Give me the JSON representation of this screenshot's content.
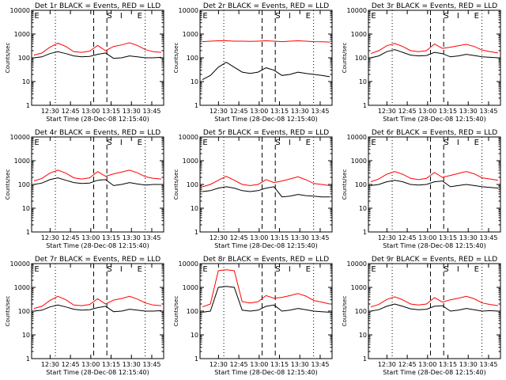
{
  "chart_data": [
    {
      "type": "line",
      "title": "Det 1r BLACK = Events, RED = LLD",
      "ylabel": "Counts/sec",
      "xlabel": "Start Time (28-Dec-08 12:15:40)",
      "xticks": [
        "12:30",
        "12:45",
        "13:00",
        "13:15",
        "13:30",
        "13:45"
      ],
      "yscale": "log",
      "ylim": [
        1,
        10000
      ],
      "yticks": [
        "1",
        "10",
        "100",
        "1000",
        "10000"
      ],
      "markers": [
        "E",
        "S",
        "I",
        "E"
      ],
      "series": [
        {
          "color": "#000000",
          "values": [
            100,
            110,
            150,
            180,
            150,
            120,
            110,
            115,
            140,
            160,
            95,
            100,
            120,
            110,
            100,
            100,
            105
          ]
        },
        {
          "color": "#ff0000",
          "values": [
            130,
            160,
            280,
            410,
            300,
            180,
            170,
            190,
            330,
            200,
            300,
            350,
            430,
            330,
            220,
            180,
            170
          ]
        }
      ]
    },
    {
      "type": "line",
      "title": "Det 2r BLACK = Events, RED = LLD",
      "ylabel": "Counts/sec",
      "xlabel": "Start Time (28-Dec-08 12:15:40)",
      "xticks": [
        "12:30",
        "12:45",
        "13:00",
        "13:15",
        "13:30",
        "13:45"
      ],
      "yscale": "log",
      "ylim": [
        1,
        10000
      ],
      "yticks": [
        "1",
        "10",
        "100",
        "1000",
        "10000"
      ],
      "markers": [
        "E",
        "S",
        "I",
        "E"
      ],
      "series": [
        {
          "color": "#000000",
          "values": [
            12,
            18,
            40,
            65,
            40,
            25,
            22,
            25,
            38,
            30,
            18,
            20,
            25,
            22,
            20,
            18,
            16
          ]
        },
        {
          "color": "#ff0000",
          "values": [
            480,
            500,
            520,
            520,
            500,
            500,
            490,
            500,
            520,
            500,
            480,
            500,
            520,
            500,
            480,
            470,
            460
          ]
        }
      ]
    },
    {
      "type": "line",
      "title": "Det 3r BLACK = Events, RED = LLD",
      "ylabel": "Counts/sec",
      "xlabel": "Start Time (28-Dec-08 12:15:40)",
      "xticks": [
        "12:30",
        "12:45",
        "13:00",
        "13:15",
        "13:30",
        "13:45"
      ],
      "yscale": "log",
      "ylim": [
        1,
        10000
      ],
      "yticks": [
        "1",
        "10",
        "100",
        "1000",
        "10000"
      ],
      "markers": [
        "E",
        "S",
        "I",
        "E"
      ],
      "series": [
        {
          "color": "#000000",
          "values": [
            100,
            120,
            180,
            220,
            170,
            130,
            120,
            125,
            170,
            150,
            110,
            120,
            140,
            125,
            110,
            105,
            100
          ]
        },
        {
          "color": "#ff0000",
          "values": [
            150,
            200,
            320,
            400,
            300,
            200,
            180,
            200,
            380,
            250,
            280,
            320,
            370,
            300,
            210,
            180,
            160
          ]
        }
      ]
    },
    {
      "type": "line",
      "title": "Det 4r BLACK = Events, RED = LLD",
      "ylabel": "Counts/sec",
      "xlabel": "Start Time (28-Dec-08 12:15:40)",
      "xticks": [
        "12:30",
        "12:45",
        "13:00",
        "13:15",
        "13:30",
        "13:45"
      ],
      "yscale": "log",
      "ylim": [
        1,
        10000
      ],
      "yticks": [
        "1",
        "10",
        "100",
        "1000",
        "10000"
      ],
      "markers": [
        "E",
        "S",
        "I",
        "E"
      ],
      "series": [
        {
          "color": "#000000",
          "values": [
            100,
            115,
            160,
            190,
            150,
            120,
            110,
            115,
            150,
            160,
            90,
            100,
            120,
            105,
            95,
            100,
            100
          ]
        },
        {
          "color": "#ff0000",
          "values": [
            140,
            180,
            300,
            400,
            300,
            190,
            170,
            190,
            350,
            220,
            280,
            330,
            400,
            310,
            210,
            180,
            170
          ]
        }
      ]
    },
    {
      "type": "line",
      "title": "Det 5r BLACK = Events, RED = LLD",
      "ylabel": "Counts/sec",
      "xlabel": "Start Time (28-Dec-08 12:15:40)",
      "xticks": [
        "12:30",
        "12:45",
        "13:00",
        "13:15",
        "13:30",
        "13:45"
      ],
      "yscale": "log",
      "ylim": [
        1,
        10000
      ],
      "yticks": [
        "1",
        "10",
        "100",
        "1000",
        "10000"
      ],
      "markers": [
        "E",
        "S",
        "I",
        "E"
      ],
      "series": [
        {
          "color": "#000000",
          "values": [
            50,
            55,
            70,
            80,
            70,
            55,
            50,
            55,
            70,
            80,
            30,
            32,
            38,
            34,
            32,
            30,
            30
          ]
        },
        {
          "color": "#ff0000",
          "values": [
            80,
            100,
            150,
            220,
            150,
            100,
            90,
            100,
            160,
            120,
            140,
            170,
            210,
            160,
            110,
            100,
            90
          ]
        }
      ]
    },
    {
      "type": "line",
      "title": "Det 6r BLACK = Events, RED = LLD",
      "ylabel": "Counts/sec",
      "xlabel": "Start Time (28-Dec-08 12:15:40)",
      "xticks": [
        "12:30",
        "12:45",
        "13:00",
        "13:15",
        "13:30",
        "13:45"
      ],
      "yscale": "log",
      "ylim": [
        1,
        10000
      ],
      "yticks": [
        "1",
        "10",
        "100",
        "1000",
        "10000"
      ],
      "markers": [
        "E",
        "S",
        "I",
        "E"
      ],
      "series": [
        {
          "color": "#000000",
          "values": [
            90,
            100,
            130,
            150,
            130,
            100,
            95,
            100,
            130,
            140,
            80,
            90,
            100,
            90,
            80,
            75,
            70
          ]
        },
        {
          "color": "#ff0000",
          "values": [
            130,
            170,
            270,
            350,
            270,
            180,
            160,
            180,
            320,
            200,
            240,
            290,
            350,
            280,
            190,
            170,
            150
          ]
        }
      ]
    },
    {
      "type": "line",
      "title": "Det 7r BLACK = Events, RED = LLD",
      "ylabel": "Counts/sec",
      "xlabel": "Start Time (28-Dec-08 12:15:40)",
      "xticks": [
        "12:30",
        "12:45",
        "13:00",
        "13:15",
        "13:30",
        "13:45"
      ],
      "yscale": "log",
      "ylim": [
        1,
        10000
      ],
      "yticks": [
        "1",
        "10",
        "100",
        "1000",
        "10000"
      ],
      "markers": [
        "E",
        "S",
        "I",
        "E"
      ],
      "series": [
        {
          "color": "#000000",
          "values": [
            100,
            110,
            150,
            180,
            150,
            120,
            110,
            115,
            140,
            160,
            95,
            100,
            120,
            110,
            100,
            100,
            105
          ]
        },
        {
          "color": "#ff0000",
          "values": [
            130,
            160,
            280,
            420,
            300,
            180,
            170,
            190,
            330,
            200,
            290,
            340,
            420,
            320,
            220,
            180,
            170
          ]
        }
      ]
    },
    {
      "type": "line",
      "title": "Det 8r BLACK = Events, RED = LLD",
      "ylabel": "Counts/sec",
      "xlabel": "Start Time (28-Dec-08 12:15:40)",
      "xticks": [
        "12:30",
        "12:45",
        "13:00",
        "13:15",
        "13:30",
        "13:45"
      ],
      "yscale": "log",
      "ylim": [
        1,
        10000
      ],
      "yticks": [
        "1",
        "10",
        "100",
        "1000",
        "10000"
      ],
      "markers": [
        "E",
        "S",
        "I",
        "E"
      ],
      "series": [
        {
          "color": "#000000",
          "values": [
            90,
            100,
            1000,
            1100,
            1000,
            110,
            100,
            110,
            160,
            180,
            100,
            110,
            130,
            115,
            100,
            95,
            90
          ]
        },
        {
          "color": "#ff0000",
          "values": [
            150,
            200,
            5000,
            5500,
            5000,
            250,
            220,
            250,
            450,
            350,
            380,
            450,
            550,
            430,
            280,
            240,
            200
          ]
        }
      ]
    },
    {
      "type": "line",
      "title": "Det 9r BLACK = Events, RED = LLD",
      "ylabel": "Counts/sec",
      "xlabel": "Start Time (28-Dec-08 12:15:40)",
      "xticks": [
        "12:30",
        "12:45",
        "13:00",
        "13:15",
        "13:30",
        "13:45"
      ],
      "yscale": "log",
      "ylim": [
        1,
        10000
      ],
      "yticks": [
        "1",
        "10",
        "100",
        "1000",
        "10000"
      ],
      "markers": [
        "E",
        "S",
        "I",
        "E"
      ],
      "series": [
        {
          "color": "#000000",
          "values": [
            100,
            115,
            160,
            200,
            160,
            125,
            115,
            120,
            160,
            170,
            100,
            110,
            130,
            115,
            100,
            105,
            100
          ]
        },
        {
          "color": "#ff0000",
          "values": [
            150,
            190,
            310,
            400,
            300,
            200,
            180,
            200,
            370,
            240,
            300,
            350,
            420,
            330,
            220,
            190,
            170
          ]
        }
      ]
    }
  ]
}
